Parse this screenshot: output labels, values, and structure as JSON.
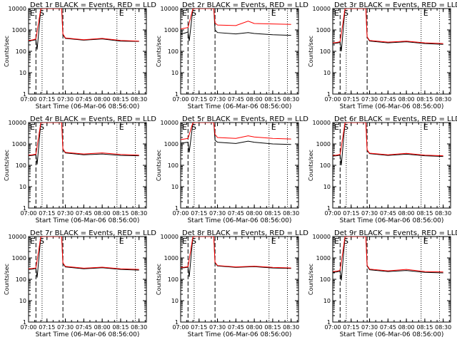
{
  "window": {
    "width_label": "",
    "title": ""
  },
  "common": {
    "xlabel": "Start Time (06-Mar-06 08:56:00)",
    "ylabel": "Counts/sec",
    "x_ticks": [
      "07:00",
      "07:15",
      "07:30",
      "07:45",
      "08:00",
      "08:15",
      "08:30"
    ],
    "y_ticks": [
      "1",
      "10",
      "100",
      "1000",
      "10000"
    ],
    "legend_letters": {
      "start": "E",
      "s": "S",
      "end": "E"
    }
  },
  "colors": {
    "events": "#000000",
    "lld": "#ff0000",
    "axes": "#000000",
    "background": "#ffffff"
  },
  "chart_data": [
    {
      "type": "line",
      "title": "Det 1r BLACK = Events, RED = LLD",
      "xlabel": "Start Time (06-Mar-06 08:56:00)",
      "ylabel": "Counts/sec",
      "yscale": "log",
      "ylim": [
        1,
        10000
      ],
      "x_ticks": [
        "07:00",
        "07:15",
        "07:30",
        "07:45",
        "08:00",
        "08:15",
        "08:30"
      ],
      "dashed_lines": [
        "07:06",
        "07:28"
      ],
      "dotted_lines": [
        "07:11",
        "08:12",
        "08:27"
      ],
      "letters": [
        "E",
        "S",
        "E"
      ],
      "series": [
        {
          "name": "Events",
          "x": [
            "07:00",
            "07:03",
            "07:06",
            "07:07",
            "07:10",
            "07:27",
            "07:28",
            "07:30",
            "07:45",
            "08:00",
            "08:15",
            "08:30"
          ],
          "y": [
            300,
            320,
            350,
            120,
            10000,
            10000,
            600,
            400,
            330,
            380,
            300,
            290
          ]
        },
        {
          "name": "LLD",
          "x": [
            "07:00",
            "07:03",
            "07:06",
            "07:10",
            "07:27",
            "07:28",
            "07:30",
            "07:45",
            "08:00",
            "08:15",
            "08:30"
          ],
          "y": [
            320,
            340,
            380,
            10000,
            10000,
            650,
            420,
            350,
            400,
            320,
            300
          ]
        }
      ]
    },
    {
      "type": "line",
      "title": "Det 2r BLACK = Events, RED = LLD",
      "xlabel": "Start Time (06-Mar-06 08:56:00)",
      "ylabel": "Counts/sec",
      "yscale": "log",
      "ylim": [
        1,
        10000
      ],
      "x_ticks": [
        "07:00",
        "07:15",
        "07:30",
        "07:45",
        "08:00",
        "08:15",
        "08:30"
      ],
      "dashed_lines": [
        "07:06",
        "07:28"
      ],
      "dotted_lines": [
        "07:11",
        "08:12",
        "08:27"
      ],
      "letters": [
        "E",
        "S",
        "E"
      ],
      "series": [
        {
          "name": "Events",
          "x": [
            "07:00",
            "07:03",
            "07:06",
            "07:07",
            "07:10",
            "07:27",
            "07:28",
            "07:30",
            "07:45",
            "07:55",
            "08:00",
            "08:15",
            "08:30"
          ],
          "y": [
            650,
            700,
            800,
            300,
            10000,
            10000,
            1000,
            750,
            650,
            750,
            680,
            600,
            560
          ]
        },
        {
          "name": "LLD",
          "x": [
            "07:00",
            "07:03",
            "07:06",
            "07:10",
            "07:27",
            "07:28",
            "07:30",
            "07:45",
            "07:55",
            "08:00",
            "08:15",
            "08:30"
          ],
          "y": [
            1100,
            1200,
            1300,
            10000,
            10000,
            2100,
            1700,
            1600,
            2600,
            2000,
            1900,
            1800
          ]
        }
      ]
    },
    {
      "type": "line",
      "title": "Det 3r BLACK = Events, RED = LLD",
      "xlabel": "Start Time (06-Mar-06 08:56:00)",
      "ylabel": "Counts/sec",
      "yscale": "log",
      "ylim": [
        1,
        10000
      ],
      "x_ticks": [
        "07:00",
        "07:15",
        "07:30",
        "07:45",
        "08:00",
        "08:15",
        "08:30"
      ],
      "dashed_lines": [
        "07:06",
        "07:28"
      ],
      "dotted_lines": [
        "07:11",
        "08:12",
        "08:27"
      ],
      "letters": [
        "E",
        "S",
        "E"
      ],
      "series": [
        {
          "name": "Events",
          "x": [
            "07:00",
            "07:03",
            "07:06",
            "07:07",
            "07:10",
            "07:27",
            "07:28",
            "07:30",
            "07:45",
            "08:00",
            "08:15",
            "08:30"
          ],
          "y": [
            230,
            240,
            260,
            100,
            10000,
            10000,
            450,
            300,
            250,
            280,
            230,
            210
          ]
        },
        {
          "name": "LLD",
          "x": [
            "07:00",
            "07:03",
            "07:06",
            "07:10",
            "07:27",
            "07:28",
            "07:30",
            "07:45",
            "08:00",
            "08:15",
            "08:30"
          ],
          "y": [
            250,
            260,
            280,
            10000,
            10000,
            480,
            320,
            270,
            300,
            250,
            230
          ]
        }
      ]
    },
    {
      "type": "line",
      "title": "Det 4r BLACK = Events, RED = LLD",
      "xlabel": "Start Time (06-Mar-06 08:56:00)",
      "ylabel": "Counts/sec",
      "yscale": "log",
      "ylim": [
        1,
        10000
      ],
      "x_ticks": [
        "07:00",
        "07:15",
        "07:30",
        "07:45",
        "08:00",
        "08:15",
        "08:30"
      ],
      "dashed_lines": [
        "07:06",
        "07:28"
      ],
      "dotted_lines": [
        "07:11",
        "08:12",
        "08:27"
      ],
      "letters": [
        "E",
        "S",
        "E"
      ],
      "series": [
        {
          "name": "Events",
          "x": [
            "07:00",
            "07:03",
            "07:06",
            "07:07",
            "07:10",
            "07:27",
            "07:28",
            "07:30",
            "07:45",
            "08:00",
            "08:15",
            "08:30"
          ],
          "y": [
            280,
            290,
            310,
            110,
            10000,
            10000,
            550,
            380,
            310,
            340,
            290,
            280
          ]
        },
        {
          "name": "LLD",
          "x": [
            "07:00",
            "07:03",
            "07:06",
            "07:10",
            "07:27",
            "07:28",
            "07:30",
            "07:45",
            "08:00",
            "08:15",
            "08:30"
          ],
          "y": [
            300,
            310,
            330,
            10000,
            10000,
            580,
            400,
            340,
            380,
            320,
            300
          ]
        }
      ]
    },
    {
      "type": "line",
      "title": "Det 5r BLACK = Events, RED = LLD",
      "xlabel": "Start Time (06-Mar-06 08:56:00)",
      "ylabel": "Counts/sec",
      "yscale": "log",
      "ylim": [
        1,
        10000
      ],
      "x_ticks": [
        "07:00",
        "07:15",
        "07:30",
        "07:45",
        "08:00",
        "08:15",
        "08:30"
      ],
      "dashed_lines": [
        "07:06",
        "07:28"
      ],
      "dotted_lines": [
        "07:11",
        "08:12",
        "08:27"
      ],
      "letters": [
        "E",
        "S",
        "E"
      ],
      "series": [
        {
          "name": "Events",
          "x": [
            "07:00",
            "07:03",
            "07:06",
            "07:07",
            "07:10",
            "07:27",
            "07:28",
            "07:30",
            "07:45",
            "07:55",
            "08:00",
            "08:15",
            "08:30"
          ],
          "y": [
            1100,
            1150,
            1200,
            400,
            10000,
            10000,
            1500,
            1200,
            1050,
            1350,
            1200,
            1000,
            950
          ]
        },
        {
          "name": "LLD",
          "x": [
            "07:00",
            "07:03",
            "07:06",
            "07:10",
            "07:27",
            "07:28",
            "07:30",
            "07:45",
            "07:55",
            "08:00",
            "08:15",
            "08:30"
          ],
          "y": [
            1600,
            1700,
            1800,
            10000,
            10000,
            2800,
            2000,
            1800,
            2400,
            2100,
            1800,
            1700
          ]
        }
      ]
    },
    {
      "type": "line",
      "title": "Det 6r BLACK = Events, RED = LLD",
      "xlabel": "Start Time (06-Mar-06 08:56:00)",
      "ylabel": "Counts/sec",
      "yscale": "log",
      "ylim": [
        1,
        10000
      ],
      "x_ticks": [
        "07:00",
        "07:15",
        "07:30",
        "07:45",
        "08:00",
        "08:15",
        "08:30"
      ],
      "dashed_lines": [
        "07:06",
        "07:28"
      ],
      "dotted_lines": [
        "07:11",
        "08:12",
        "08:27"
      ],
      "letters": [
        "E",
        "S",
        "E"
      ],
      "series": [
        {
          "name": "Events",
          "x": [
            "07:00",
            "07:03",
            "07:06",
            "07:07",
            "07:10",
            "07:27",
            "07:28",
            "07:30",
            "07:45",
            "08:00",
            "08:15",
            "08:30"
          ],
          "y": [
            270,
            280,
            300,
            100,
            10000,
            10000,
            500,
            350,
            290,
            330,
            280,
            260
          ]
        },
        {
          "name": "LLD",
          "x": [
            "07:00",
            "07:03",
            "07:06",
            "07:10",
            "07:27",
            "07:28",
            "07:30",
            "07:45",
            "08:00",
            "08:15",
            "08:30"
          ],
          "y": [
            290,
            300,
            320,
            10000,
            10000,
            530,
            370,
            310,
            360,
            300,
            280
          ]
        }
      ]
    },
    {
      "type": "line",
      "title": "Det 7r BLACK = Events, RED = LLD",
      "xlabel": "Start Time (06-Mar-06 08:56:00)",
      "ylabel": "Counts/sec",
      "yscale": "log",
      "ylim": [
        1,
        10000
      ],
      "x_ticks": [
        "07:00",
        "07:15",
        "07:30",
        "07:45",
        "08:00",
        "08:15",
        "08:30"
      ],
      "dashed_lines": [
        "07:06",
        "07:28"
      ],
      "dotted_lines": [
        "07:11",
        "08:12",
        "08:27"
      ],
      "letters": [
        "E",
        "S",
        "E"
      ],
      "series": [
        {
          "name": "Events",
          "x": [
            "07:00",
            "07:03",
            "07:06",
            "07:07",
            "07:10",
            "07:27",
            "07:28",
            "07:30",
            "07:45",
            "08:00",
            "08:15",
            "08:30"
          ],
          "y": [
            290,
            300,
            320,
            120,
            10000,
            10000,
            550,
            380,
            310,
            350,
            290,
            270
          ]
        },
        {
          "name": "LLD",
          "x": [
            "07:00",
            "07:03",
            "07:06",
            "07:10",
            "07:27",
            "07:28",
            "07:30",
            "07:45",
            "08:00",
            "08:15",
            "08:30"
          ],
          "y": [
            310,
            320,
            340,
            10000,
            10000,
            580,
            400,
            330,
            370,
            310,
            290
          ]
        }
      ]
    },
    {
      "type": "line",
      "title": "Det 8r BLACK = Events, RED = LLD",
      "xlabel": "Start Time (06-Mar-06 08:56:00)",
      "ylabel": "Counts/sec",
      "yscale": "log",
      "ylim": [
        1,
        10000
      ],
      "x_ticks": [
        "07:00",
        "07:15",
        "07:30",
        "07:45",
        "08:00",
        "08:15",
        "08:30"
      ],
      "dashed_lines": [
        "07:06",
        "07:28"
      ],
      "dotted_lines": [
        "07:11",
        "08:12",
        "08:27"
      ],
      "letters": [
        "E",
        "S",
        "E"
      ],
      "series": [
        {
          "name": "Events",
          "x": [
            "07:00",
            "07:03",
            "07:06",
            "07:07",
            "07:10",
            "07:27",
            "07:28",
            "07:30",
            "07:45",
            "08:00",
            "08:15",
            "08:30"
          ],
          "y": [
            340,
            350,
            370,
            130,
            10000,
            10000,
            600,
            420,
            360,
            390,
            340,
            320
          ]
        },
        {
          "name": "LLD",
          "x": [
            "07:00",
            "07:03",
            "07:06",
            "07:10",
            "07:27",
            "07:28",
            "07:30",
            "07:45",
            "08:00",
            "08:15",
            "08:30"
          ],
          "y": [
            360,
            370,
            390,
            10000,
            10000,
            630,
            440,
            380,
            410,
            360,
            340
          ]
        }
      ]
    },
    {
      "type": "line",
      "title": "Det 9r BLACK = Events, RED = LLD",
      "xlabel": "Start Time (06-Mar-06 08:56:00)",
      "ylabel": "Counts/sec",
      "yscale": "log",
      "ylim": [
        1,
        10000
      ],
      "x_ticks": [
        "07:00",
        "07:15",
        "07:30",
        "07:45",
        "08:00",
        "08:15",
        "08:30"
      ],
      "dashed_lines": [
        "07:06",
        "07:28"
      ],
      "dotted_lines": [
        "07:11",
        "08:12",
        "08:27"
      ],
      "letters": [
        "E",
        "S",
        "E"
      ],
      "series": [
        {
          "name": "Events",
          "x": [
            "07:00",
            "07:03",
            "07:06",
            "07:07",
            "07:10",
            "07:27",
            "07:28",
            "07:30",
            "07:45",
            "08:00",
            "08:15",
            "08:30"
          ],
          "y": [
            210,
            220,
            240,
            90,
            10000,
            10000,
            420,
            280,
            230,
            260,
            210,
            200
          ]
        },
        {
          "name": "LLD",
          "x": [
            "07:00",
            "07:03",
            "07:06",
            "07:10",
            "07:27",
            "07:28",
            "07:30",
            "07:45",
            "08:00",
            "08:15",
            "08:30"
          ],
          "y": [
            230,
            240,
            260,
            10000,
            10000,
            450,
            300,
            250,
            290,
            230,
            220
          ]
        }
      ]
    }
  ]
}
